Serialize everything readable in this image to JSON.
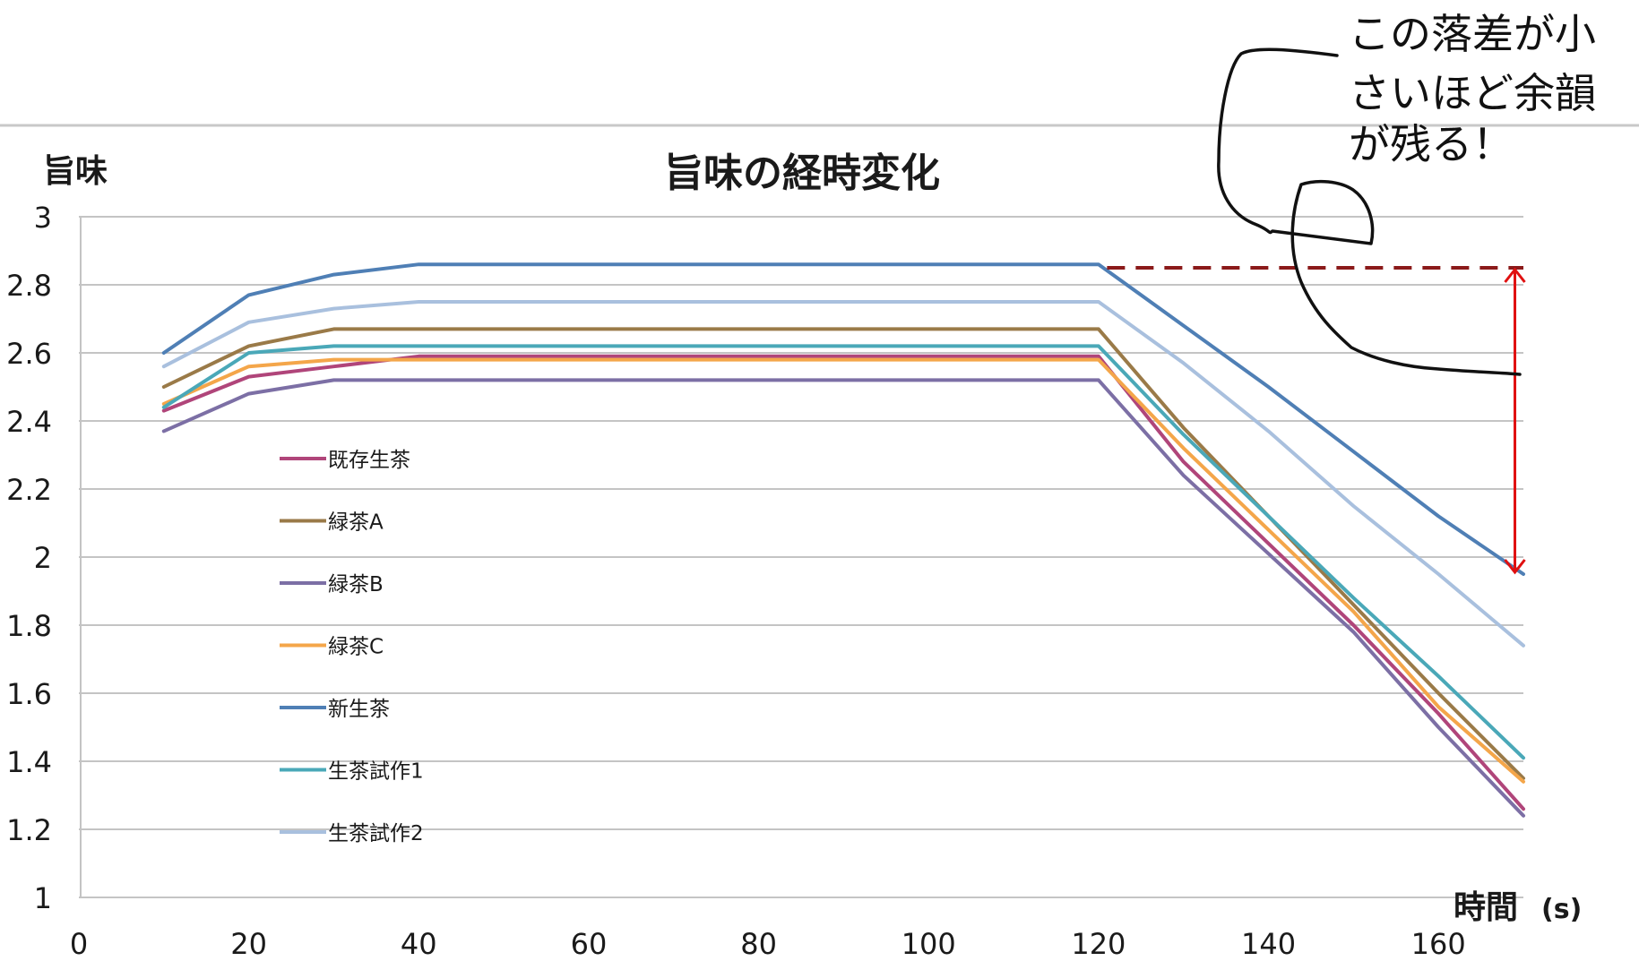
{
  "chart_data": {
    "type": "line",
    "title": "旨味の経時変化",
    "ylabel": "旨味",
    "xlabel": "時間",
    "xunit": "(s)",
    "xlim": [
      0,
      170
    ],
    "ylim": [
      1,
      3
    ],
    "xticks": [
      "0",
      "20",
      "40",
      "60",
      "80",
      "100",
      "120",
      "140",
      "160"
    ],
    "yticks": [
      "1",
      "1.2",
      "1.4",
      "1.6",
      "1.8",
      "2",
      "2.2",
      "2.4",
      "2.6",
      "2.8",
      "3"
    ],
    "grid": "horizontal",
    "legend_position": "left-inside",
    "x": [
      10,
      20,
      30,
      40,
      120,
      130,
      140,
      150,
      160,
      170
    ],
    "series": [
      {
        "name": "既存生茶",
        "color": "#b0457a",
        "values": [
          2.43,
          2.53,
          2.56,
          2.59,
          2.59,
          2.28,
          2.04,
          1.8,
          1.54,
          1.26
        ]
      },
      {
        "name": "緑茶A",
        "color": "#9a7a48",
        "values": [
          2.5,
          2.62,
          2.67,
          2.67,
          2.67,
          2.38,
          2.12,
          1.86,
          1.6,
          1.35
        ]
      },
      {
        "name": "緑茶B",
        "color": "#7c6fa5",
        "values": [
          2.37,
          2.48,
          2.52,
          2.52,
          2.52,
          2.24,
          2.01,
          1.78,
          1.5,
          1.24
        ]
      },
      {
        "name": "緑茶C",
        "color": "#f4a64a",
        "values": [
          2.45,
          2.56,
          2.58,
          2.58,
          2.58,
          2.32,
          2.08,
          1.84,
          1.56,
          1.34
        ]
      },
      {
        "name": "新生茶",
        "color": "#4f7fb5",
        "values": [
          2.6,
          2.77,
          2.83,
          2.86,
          2.86,
          2.68,
          2.5,
          2.31,
          2.12,
          1.95
        ]
      },
      {
        "name": "生茶試作1",
        "color": "#4aa8b8",
        "values": [
          2.44,
          2.6,
          2.62,
          2.62,
          2.62,
          2.36,
          2.12,
          1.88,
          1.65,
          1.41
        ]
      },
      {
        "name": "生茶試作2",
        "color": "#a9c0de",
        "values": [
          2.56,
          2.69,
          2.73,
          2.75,
          2.75,
          2.57,
          2.37,
          2.15,
          1.95,
          1.74
        ]
      }
    ],
    "annotation": {
      "lines": [
        "この落差が小",
        "さいほど余韻",
        "が残る！"
      ],
      "dashed_level": 2.85,
      "dashed_from_x": 121,
      "arrow_x": 169,
      "arrow_from": 2.85,
      "arrow_to": 1.95,
      "dash_color": "#8b1a1a",
      "arrow_color": "#e01010"
    }
  }
}
